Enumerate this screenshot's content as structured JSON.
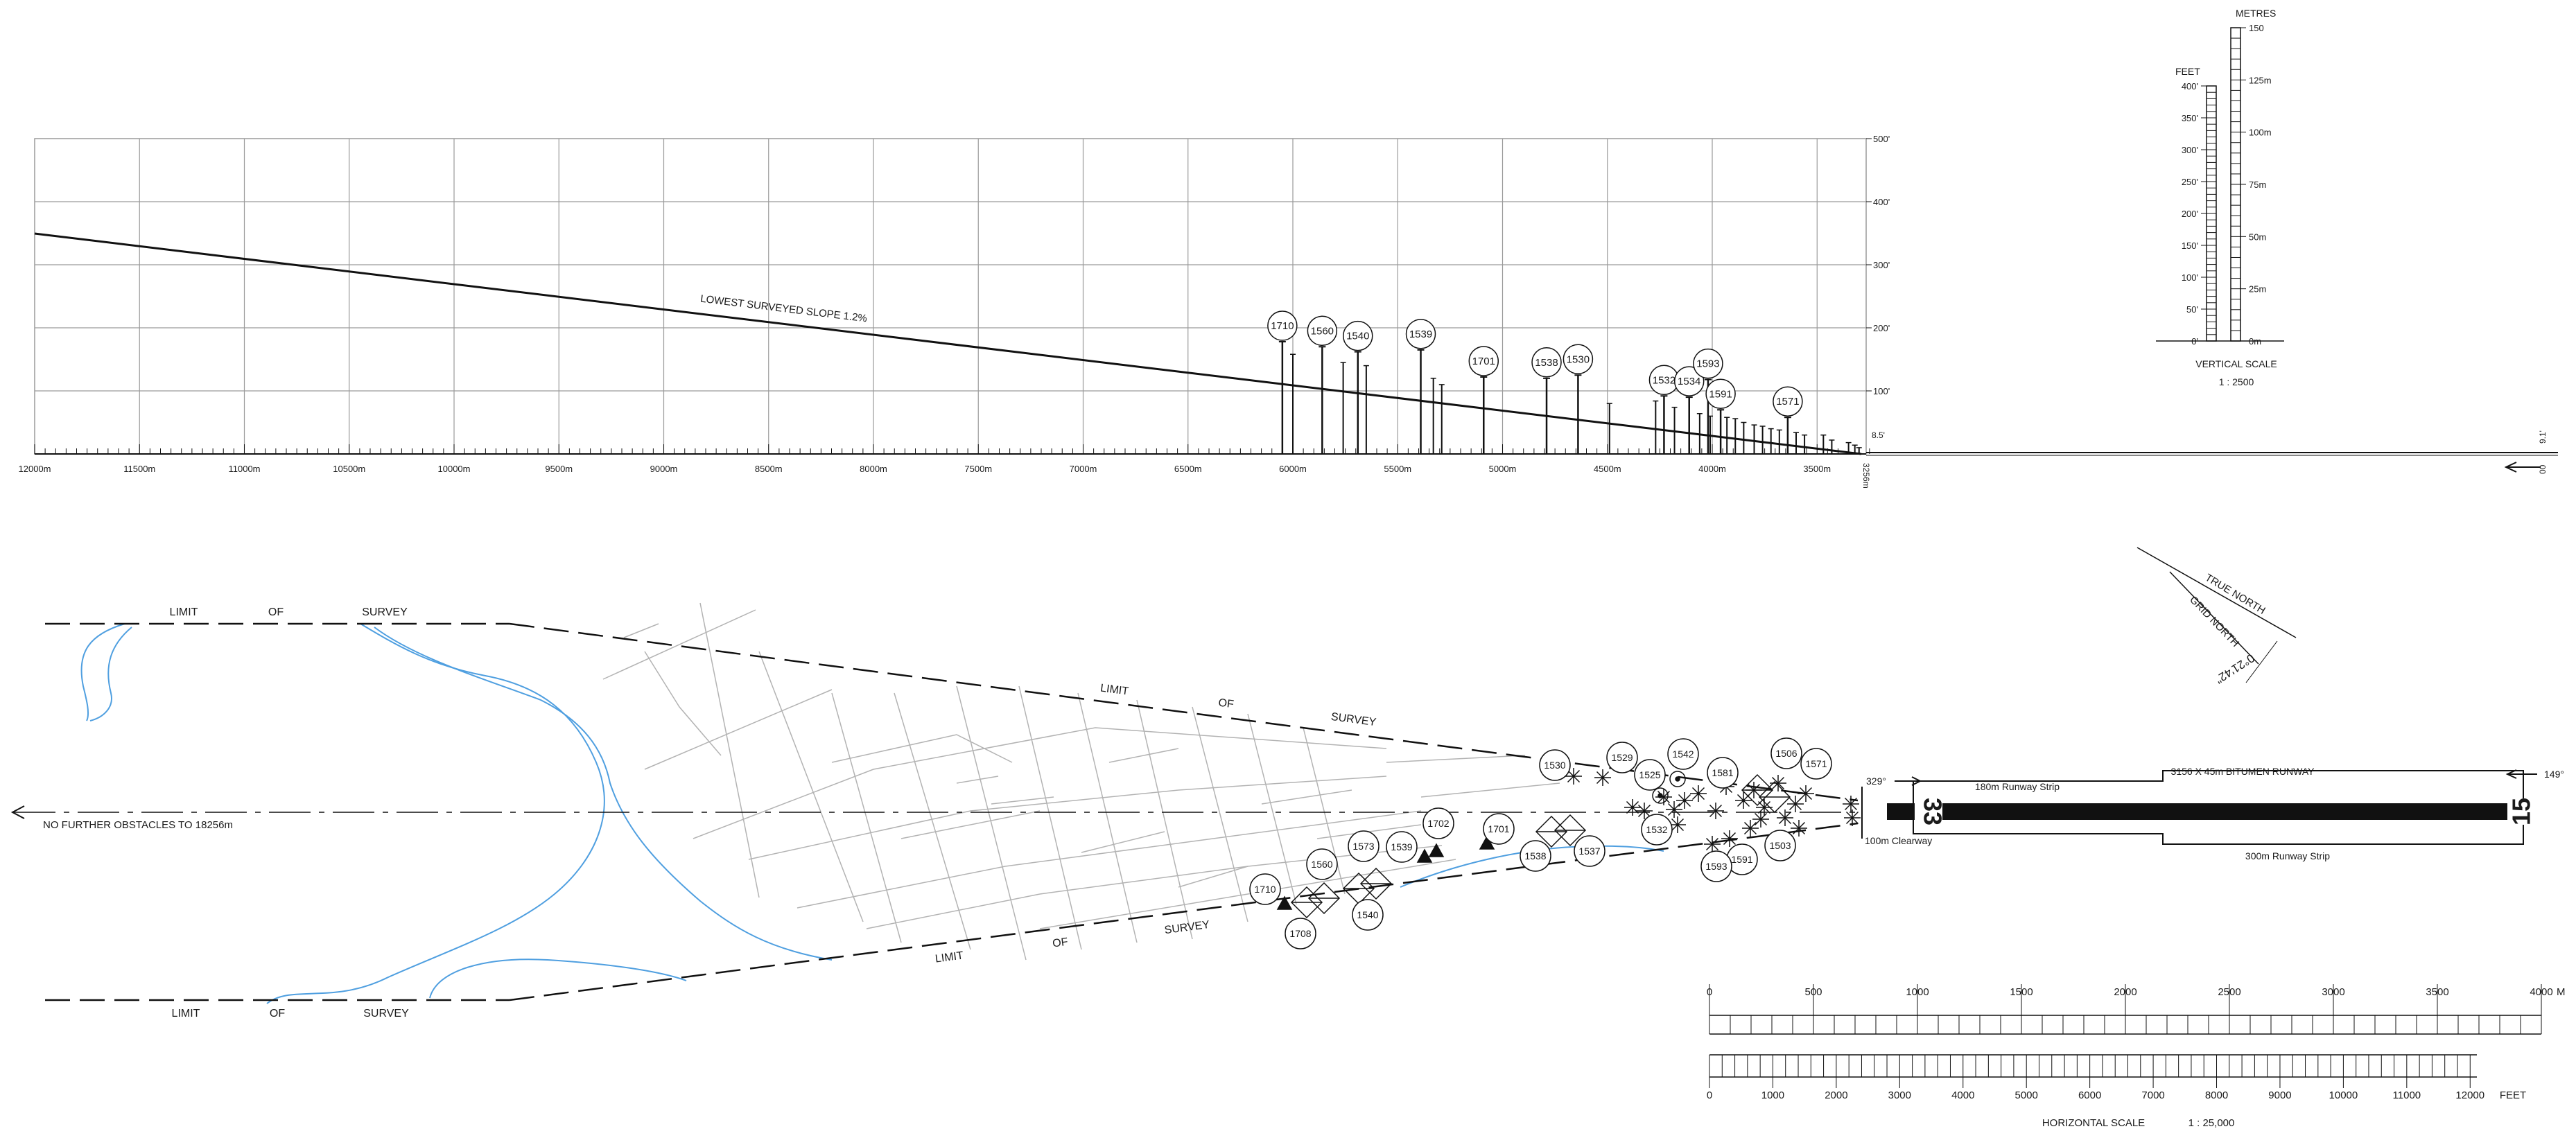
{
  "colors": {
    "ink": "#111111",
    "grid": "#9a9a9a",
    "street": "#b3b3b3",
    "river": "#4f9fe0"
  },
  "profile": {
    "slope_label": "LOWEST SURVEYED SLOPE 1.2%",
    "x_ticks": [
      "12000m",
      "11500m",
      "11000m",
      "10500m",
      "10000m",
      "9500m",
      "9000m",
      "8500m",
      "8000m",
      "7500m",
      "7000m",
      "6500m",
      "6000m",
      "5500m",
      "5000m",
      "4500m",
      "4000m",
      "3500m"
    ],
    "y_ticks": [
      "500'",
      "400'",
      "300'",
      "200'",
      "100'"
    ],
    "end_label": "3256m",
    "thr_elev": "8.5'",
    "far_elev": "9.1'",
    "far_mark": "00",
    "obstacles": [
      {
        "id": "1710",
        "dist": 6050,
        "h": 178
      },
      {
        "id": "1560",
        "dist": 5860,
        "h": 170
      },
      {
        "id": "1540",
        "dist": 5690,
        "h": 162
      },
      {
        "id": "1539",
        "dist": 5390,
        "h": 165
      },
      {
        "id": "1701",
        "dist": 5090,
        "h": 122
      },
      {
        "id": "1538",
        "dist": 4790,
        "h": 120
      },
      {
        "id": "1530",
        "dist": 4640,
        "h": 125
      },
      {
        "id": "1532",
        "dist": 4230,
        "h": 92
      },
      {
        "id": "1534",
        "dist": 4110,
        "h": 90
      },
      {
        "id": "1593",
        "dist": 4020,
        "h": 118
      },
      {
        "id": "1591",
        "dist": 3960,
        "h": 70
      },
      {
        "id": "1571",
        "dist": 3640,
        "h": 58
      }
    ]
  },
  "vertical_scale": {
    "metres_label": "METRES",
    "feet_label": "FEET",
    "metre_ticks": [
      "150",
      "125m",
      "100m",
      "75m",
      "50m",
      "25m",
      "0m"
    ],
    "feet_ticks": [
      "400'",
      "350'",
      "300'",
      "250'",
      "200'",
      "150'",
      "100'",
      "50'",
      "0'"
    ],
    "title": "VERTICAL SCALE",
    "ratio": "1 : 2500"
  },
  "north": {
    "true_label": "TRUE NORTH",
    "grid_label": "GRID NORTH",
    "angle": "0°21'42\""
  },
  "plan": {
    "limit_of_survey": [
      "LIMIT",
      "OF",
      "SURVEY"
    ],
    "no_further": "NO FURTHER OBSTACLES TO 18256m",
    "heading_329": "329°",
    "heading_149": "149°",
    "runway_label": "3156 X 45m BITUMEN RUNWAY",
    "strip_180": "180m Runway Strip",
    "strip_300": "300m Runway Strip",
    "clearway": "100m Clearway",
    "rwy_33": "33",
    "rwy_15": "15",
    "obstacle_labels": [
      {
        "id": "1530",
        "cx": 2243,
        "cy": 1104
      },
      {
        "id": "1529",
        "cx": 2340,
        "cy": 1093
      },
      {
        "id": "1525",
        "cx": 2380,
        "cy": 1118
      },
      {
        "id": "1542",
        "cx": 2428,
        "cy": 1088
      },
      {
        "id": "1581",
        "cx": 2485,
        "cy": 1115
      },
      {
        "id": "1506",
        "cx": 2577,
        "cy": 1087
      },
      {
        "id": "1571",
        "cx": 2620,
        "cy": 1102
      },
      {
        "id": "1532",
        "cx": 2390,
        "cy": 1197
      },
      {
        "id": "1503",
        "cx": 2568,
        "cy": 1220
      },
      {
        "id": "1591",
        "cx": 2513,
        "cy": 1240
      },
      {
        "id": "1593",
        "cx": 2476,
        "cy": 1250
      },
      {
        "id": "1537",
        "cx": 2293,
        "cy": 1228
      },
      {
        "id": "1538",
        "cx": 2215,
        "cy": 1235
      },
      {
        "id": "1701",
        "cx": 2162,
        "cy": 1196
      },
      {
        "id": "1702",
        "cx": 2075,
        "cy": 1188
      },
      {
        "id": "1539",
        "cx": 2022,
        "cy": 1222
      },
      {
        "id": "1573",
        "cx": 1967,
        "cy": 1221
      },
      {
        "id": "1560",
        "cx": 1907,
        "cy": 1247
      },
      {
        "id": "1710",
        "cx": 1825,
        "cy": 1283
      },
      {
        "id": "1540",
        "cx": 1973,
        "cy": 1320
      },
      {
        "id": "1708",
        "cx": 1876,
        "cy": 1347
      }
    ]
  },
  "horizontal_scale": {
    "metre_ticks": [
      "0",
      "500",
      "1000",
      "1500",
      "2000",
      "2500",
      "3000",
      "3500",
      "4000"
    ],
    "metre_unit": "M",
    "feet_ticks": [
      "0",
      "1000",
      "2000",
      "3000",
      "4000",
      "5000",
      "6000",
      "7000",
      "8000",
      "9000",
      "10000",
      "11000",
      "12000"
    ],
    "feet_unit": "FEET",
    "title": "HORIZONTAL SCALE",
    "ratio": "1 : 25,000"
  }
}
